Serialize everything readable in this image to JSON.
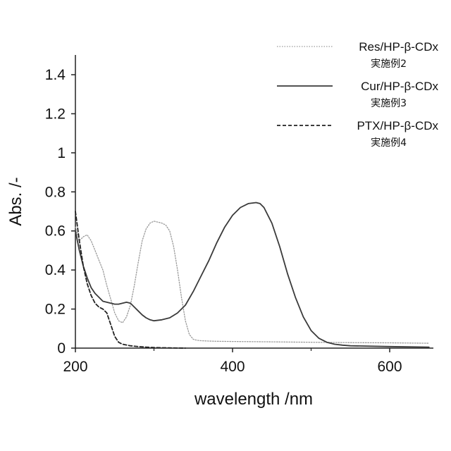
{
  "chart_data": {
    "type": "line",
    "xlabel": "wavelength  /nm",
    "ylabel": "Abs. /-",
    "xlim": [
      200,
      650
    ],
    "ylim": [
      0,
      1.5
    ],
    "x_ticks": [
      "200",
      "400",
      "600"
    ],
    "y_ticks": [
      "0",
      "0.2",
      "0.4",
      "0.6",
      "0.8",
      "1",
      "1.2",
      "1.4"
    ],
    "grid": false,
    "legend_position": "top-right",
    "series": [
      {
        "name": "Res/HP-β-CDx",
        "sublabel": "実施例2",
        "style": "dotted",
        "color": "#9a9a9a",
        "x": [
          200,
          205,
          210,
          215,
          220,
          225,
          230,
          235,
          240,
          245,
          250,
          255,
          260,
          265,
          270,
          275,
          280,
          285,
          290,
          295,
          300,
          305,
          310,
          315,
          320,
          325,
          330,
          335,
          340,
          345,
          350,
          355,
          360,
          370,
          380,
          400,
          450,
          500,
          550,
          600,
          650
        ],
        "y": [
          0.62,
          0.55,
          0.57,
          0.58,
          0.55,
          0.5,
          0.45,
          0.4,
          0.32,
          0.25,
          0.18,
          0.14,
          0.13,
          0.16,
          0.22,
          0.32,
          0.44,
          0.55,
          0.61,
          0.64,
          0.65,
          0.645,
          0.64,
          0.63,
          0.6,
          0.52,
          0.4,
          0.26,
          0.14,
          0.07,
          0.045,
          0.04,
          0.038,
          0.036,
          0.035,
          0.034,
          0.032,
          0.03,
          0.028,
          0.027,
          0.025
        ]
      },
      {
        "name": "Cur/HP-β-CDx",
        "sublabel": "実施例3",
        "style": "solid",
        "color": "#3a3a3a",
        "x": [
          200,
          205,
          210,
          215,
          220,
          225,
          230,
          235,
          240,
          245,
          250,
          255,
          260,
          265,
          270,
          275,
          280,
          285,
          290,
          295,
          300,
          310,
          320,
          330,
          340,
          350,
          360,
          370,
          380,
          390,
          400,
          410,
          420,
          430,
          435,
          440,
          450,
          460,
          470,
          480,
          490,
          500,
          510,
          520,
          530,
          540,
          550,
          600,
          650
        ],
        "y": [
          0.6,
          0.5,
          0.42,
          0.36,
          0.31,
          0.28,
          0.26,
          0.24,
          0.235,
          0.23,
          0.225,
          0.225,
          0.23,
          0.235,
          0.23,
          0.21,
          0.19,
          0.17,
          0.155,
          0.145,
          0.14,
          0.145,
          0.155,
          0.18,
          0.22,
          0.29,
          0.37,
          0.45,
          0.54,
          0.62,
          0.68,
          0.72,
          0.74,
          0.745,
          0.74,
          0.72,
          0.64,
          0.52,
          0.38,
          0.26,
          0.16,
          0.09,
          0.05,
          0.03,
          0.02,
          0.015,
          0.012,
          0.008,
          0.005
        ]
      },
      {
        "name": "PTX/HP-β-CDx",
        "sublabel": "実施例4",
        "style": "dashed",
        "color": "#222222",
        "x": [
          200,
          205,
          210,
          215,
          220,
          225,
          230,
          235,
          240,
          245,
          250,
          255,
          260,
          270,
          280,
          290,
          300,
          320,
          340
        ],
        "y": [
          0.7,
          0.55,
          0.42,
          0.33,
          0.27,
          0.23,
          0.21,
          0.2,
          0.18,
          0.12,
          0.06,
          0.03,
          0.02,
          0.012,
          0.008,
          0.005,
          0.003,
          0.001,
          0.0
        ]
      }
    ]
  }
}
